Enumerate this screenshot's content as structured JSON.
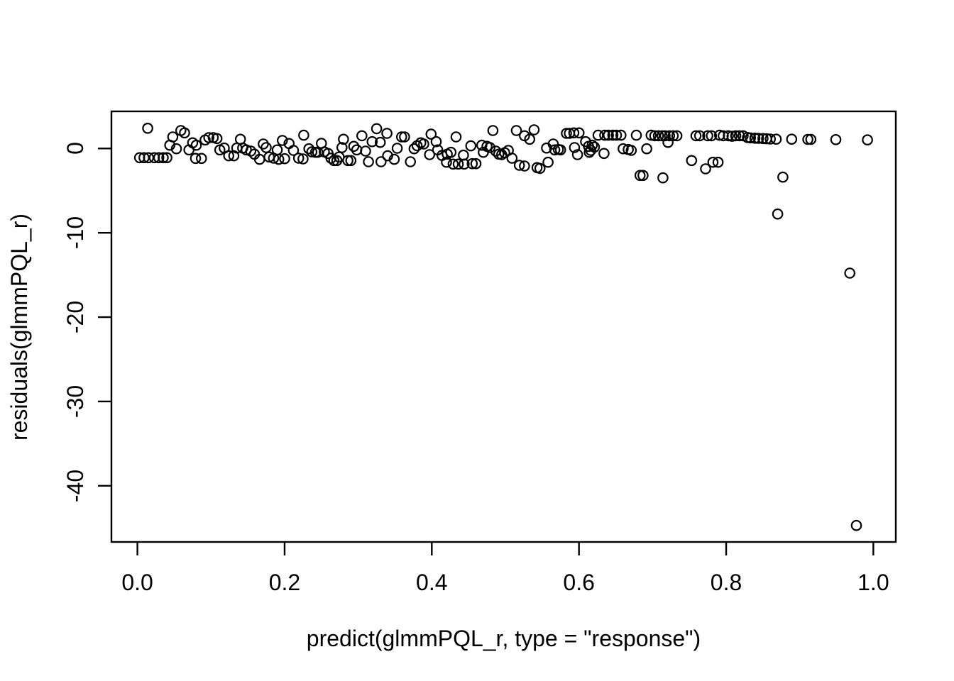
{
  "colors": {
    "background": "#ffffff",
    "foreground": "#000000",
    "marker_stroke": "#000000"
  },
  "chart_data": {
    "type": "scatter",
    "title": "",
    "xlabel": "predict(glmmPQL_r, type = \"response\")",
    "ylabel": "residuals(glmmPQL_r)",
    "grid": false,
    "legend": null,
    "marker": {
      "shape": "open-circle",
      "color": "#000000"
    },
    "xlim": [
      -0.0353,
      1.0305
    ],
    "ylim": [
      -46.66,
      4.4
    ],
    "x_ticks": {
      "values": [
        0.0,
        0.2,
        0.4,
        0.6,
        0.8,
        1.0
      ],
      "labels": [
        "0.0",
        "0.2",
        "0.4",
        "0.6",
        "0.8",
        "1.0"
      ]
    },
    "y_ticks": {
      "values": [
        0,
        -10,
        -20,
        -30,
        -40
      ],
      "labels": [
        "0",
        "-10",
        "-20",
        "-30",
        "-40"
      ]
    },
    "points": [
      [
        0.003,
        -1.09
      ],
      [
        0.009,
        -1.09
      ],
      [
        0.015,
        -1.09
      ],
      [
        0.023,
        -1.09
      ],
      [
        0.029,
        -1.09
      ],
      [
        0.035,
        -1.09
      ],
      [
        0.04,
        -1.09
      ],
      [
        0.014,
        2.4
      ],
      [
        0.044,
        0.39
      ],
      [
        0.048,
        1.37
      ],
      [
        0.053,
        -0.03
      ],
      [
        0.059,
        2.13
      ],
      [
        0.064,
        1.85
      ],
      [
        0.07,
        -0.17
      ],
      [
        0.075,
        0.67
      ],
      [
        0.079,
        -1.18
      ],
      [
        0.08,
        0.39
      ],
      [
        0.087,
        -1.18
      ],
      [
        0.092,
        1.01
      ],
      [
        0.097,
        1.29
      ],
      [
        0.103,
        1.29
      ],
      [
        0.108,
        1.18
      ],
      [
        0.112,
        -0.17
      ],
      [
        0.118,
        0.05
      ],
      [
        0.124,
        -0.87
      ],
      [
        0.131,
        -0.87
      ],
      [
        0.135,
        0.05
      ],
      [
        0.14,
        1.09
      ],
      [
        0.143,
        0.05
      ],
      [
        0.148,
        -0.17
      ],
      [
        0.154,
        -0.31
      ],
      [
        0.159,
        -0.67
      ],
      [
        0.166,
        -1.29
      ],
      [
        0.171,
        0.53
      ],
      [
        0.175,
        0.11
      ],
      [
        0.179,
        -1.01
      ],
      [
        0.185,
        -1.15
      ],
      [
        0.19,
        -0.17
      ],
      [
        0.192,
        -1.29
      ],
      [
        0.197,
        0.95
      ],
      [
        0.2,
        -1.21
      ],
      [
        0.206,
        0.59
      ],
      [
        0.212,
        -0.23
      ],
      [
        0.219,
        -1.15
      ],
      [
        0.225,
        -1.24
      ],
      [
        0.226,
        1.57
      ],
      [
        0.233,
        -0.03
      ],
      [
        0.237,
        -0.4
      ],
      [
        0.242,
        -0.45
      ],
      [
        0.245,
        -0.45
      ],
      [
        0.25,
        0.61
      ],
      [
        0.254,
        -0.4
      ],
      [
        0.259,
        -0.59
      ],
      [
        0.263,
        -1.15
      ],
      [
        0.267,
        -1.43
      ],
      [
        0.271,
        -1.43
      ],
      [
        0.274,
        -1.01
      ],
      [
        0.278,
        0.11
      ],
      [
        0.28,
        1.09
      ],
      [
        0.286,
        -1.43
      ],
      [
        0.29,
        -1.43
      ],
      [
        0.294,
        0.25
      ],
      [
        0.298,
        -0.17
      ],
      [
        0.305,
        1.51
      ],
      [
        0.31,
        -0.31
      ],
      [
        0.314,
        -1.57
      ],
      [
        0.319,
        0.81
      ],
      [
        0.325,
        2.35
      ],
      [
        0.33,
        0.72
      ],
      [
        0.331,
        -1.57
      ],
      [
        0.339,
        1.79
      ],
      [
        0.34,
        -0.87
      ],
      [
        0.349,
        -1.29
      ],
      [
        0.353,
        0.03
      ],
      [
        0.359,
        1.37
      ],
      [
        0.363,
        1.37
      ],
      [
        0.371,
        -1.57
      ],
      [
        0.376,
        -0.03
      ],
      [
        0.38,
        0.33
      ],
      [
        0.385,
        0.67
      ],
      [
        0.389,
        0.53
      ],
      [
        0.397,
        -0.73
      ],
      [
        0.399,
        1.7
      ],
      [
        0.406,
        0.81
      ],
      [
        0.408,
        -0.17
      ],
      [
        0.414,
        -0.82
      ],
      [
        0.42,
        -1.63
      ],
      [
        0.421,
        -0.67
      ],
      [
        0.426,
        -0.45
      ],
      [
        0.429,
        -1.85
      ],
      [
        0.433,
        1.37
      ],
      [
        0.436,
        -1.85
      ],
      [
        0.443,
        -0.79
      ],
      [
        0.444,
        -1.85
      ],
      [
        0.453,
        0.31
      ],
      [
        0.455,
        -1.8
      ],
      [
        0.46,
        -1.8
      ],
      [
        0.468,
        0.39
      ],
      [
        0.47,
        -0.45
      ],
      [
        0.475,
        0.25
      ],
      [
        0.479,
        0.11
      ],
      [
        0.483,
        2.13
      ],
      [
        0.487,
        -0.31
      ],
      [
        0.491,
        -0.67
      ],
      [
        0.495,
        -0.73
      ],
      [
        0.499,
        -0.5
      ],
      [
        0.504,
        -0.23
      ],
      [
        0.509,
        -1.15
      ],
      [
        0.515,
        2.13
      ],
      [
        0.519,
        -1.99
      ],
      [
        0.526,
        1.51
      ],
      [
        0.526,
        -2.08
      ],
      [
        0.533,
        1.09
      ],
      [
        0.539,
        2.21
      ],
      [
        0.543,
        -2.27
      ],
      [
        0.547,
        -2.36
      ],
      [
        0.556,
        0.05
      ],
      [
        0.558,
        -1.63
      ],
      [
        0.565,
        0.53
      ],
      [
        0.567,
        -0.17
      ],
      [
        0.572,
        -0.12
      ],
      [
        0.575,
        -0.17
      ],
      [
        0.583,
        1.79
      ],
      [
        0.587,
        1.79
      ],
      [
        0.593,
        1.85
      ],
      [
        0.594,
        0.11
      ],
      [
        0.598,
        -0.73
      ],
      [
        0.6,
        1.85
      ],
      [
        0.609,
        0.81
      ],
      [
        0.613,
        0.25
      ],
      [
        0.614,
        -0.45
      ],
      [
        0.616,
        -0.23
      ],
      [
        0.618,
        0.39
      ],
      [
        0.621,
        0.17
      ],
      [
        0.626,
        1.57
      ],
      [
        0.634,
        -0.59
      ],
      [
        0.635,
        1.57
      ],
      [
        0.64,
        1.57
      ],
      [
        0.646,
        1.57
      ],
      [
        0.651,
        1.57
      ],
      [
        0.657,
        1.57
      ],
      [
        0.66,
        -0.03
      ],
      [
        0.667,
        -0.12
      ],
      [
        0.671,
        -0.23
      ],
      [
        0.678,
        1.57
      ],
      [
        0.683,
        -3.2
      ],
      [
        0.687,
        -3.2
      ],
      [
        0.692,
        -0.03
      ],
      [
        0.698,
        1.57
      ],
      [
        0.703,
        1.51
      ],
      [
        0.708,
        1.51
      ],
      [
        0.713,
        1.51
      ],
      [
        0.714,
        -3.48
      ],
      [
        0.717,
        1.51
      ],
      [
        0.721,
        0.72
      ],
      [
        0.723,
        1.51
      ],
      [
        0.728,
        1.51
      ],
      [
        0.733,
        1.51
      ],
      [
        0.753,
        -1.43
      ],
      [
        0.759,
        1.51
      ],
      [
        0.764,
        1.51
      ],
      [
        0.772,
        -2.41
      ],
      [
        0.775,
        1.51
      ],
      [
        0.78,
        1.51
      ],
      [
        0.782,
        -1.63
      ],
      [
        0.789,
        -1.63
      ],
      [
        0.791,
        1.57
      ],
      [
        0.796,
        1.51
      ],
      [
        0.803,
        1.51
      ],
      [
        0.808,
        1.45
      ],
      [
        0.813,
        1.51
      ],
      [
        0.818,
        1.51
      ],
      [
        0.823,
        1.51
      ],
      [
        0.829,
        1.3
      ],
      [
        0.833,
        1.25
      ],
      [
        0.839,
        1.22
      ],
      [
        0.844,
        1.2
      ],
      [
        0.85,
        1.18
      ],
      [
        0.855,
        1.15
      ],
      [
        0.86,
        1.12
      ],
      [
        0.868,
        1.1
      ],
      [
        0.877,
        -3.4
      ],
      [
        0.889,
        1.1
      ],
      [
        0.911,
        1.08
      ],
      [
        0.915,
        1.08
      ],
      [
        0.949,
        1.05
      ],
      [
        0.992,
        1.02
      ],
      [
        0.87,
        -7.77
      ],
      [
        0.968,
        -14.78
      ],
      [
        0.977,
        -44.7
      ]
    ]
  }
}
